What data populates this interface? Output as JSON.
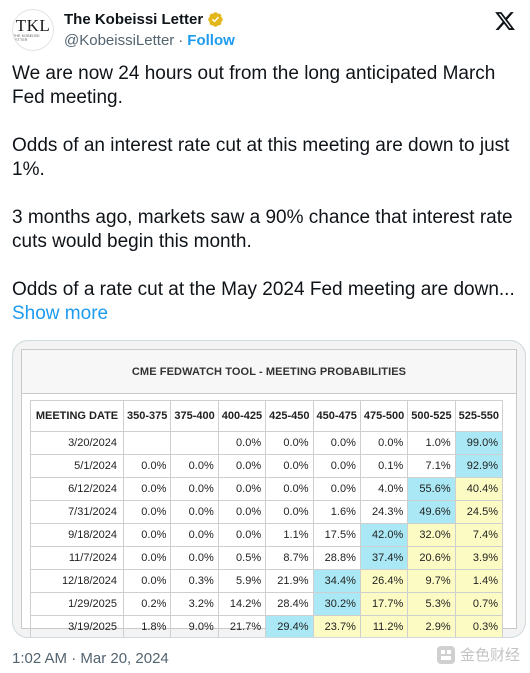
{
  "author": {
    "display_name": "The Kobeissi Letter",
    "handle": "@KobeissiLetter",
    "separator": "·",
    "follow_label": "Follow",
    "avatar_text": "TKL",
    "avatar_subtext": "THE KOBEISSI LETTER"
  },
  "tweet": {
    "paragraphs": [
      "We are now 24 hours out from the long anticipated March Fed meeting.",
      "Odds of an interest rate cut at this meeting are down to just 1%.",
      "3 months ago, markets saw a 90% chance that interest rate cuts would begin this month."
    ],
    "last_paragraph": "Odds of a rate cut at the May 2024 Fed meeting are down...",
    "show_more_label": "Show more",
    "timestamp": "1:02 AM · Mar 20, 2024"
  },
  "media": {
    "title": "CME FEDWATCH TOOL - MEETING PROBABILITIES",
    "columns": [
      "MEETING DATE",
      "350-375",
      "375-400",
      "400-425",
      "425-450",
      "450-475",
      "475-500",
      "500-525",
      "525-550"
    ],
    "rows": [
      {
        "date": "3/20/2024",
        "values": [
          "",
          "",
          "0.0%",
          "0.0%",
          "0.0%",
          "0.0%",
          "1.0%",
          "99.0%"
        ]
      },
      {
        "date": "5/1/2024",
        "values": [
          "0.0%",
          "0.0%",
          "0.0%",
          "0.0%",
          "0.0%",
          "0.1%",
          "7.1%",
          "92.9%"
        ]
      },
      {
        "date": "6/12/2024",
        "values": [
          "0.0%",
          "0.0%",
          "0.0%",
          "0.0%",
          "0.0%",
          "4.0%",
          "55.6%",
          "40.4%"
        ]
      },
      {
        "date": "7/31/2024",
        "values": [
          "0.0%",
          "0.0%",
          "0.0%",
          "0.0%",
          "1.6%",
          "24.3%",
          "49.6%",
          "24.5%"
        ]
      },
      {
        "date": "9/18/2024",
        "values": [
          "0.0%",
          "0.0%",
          "0.0%",
          "1.1%",
          "17.5%",
          "42.0%",
          "32.0%",
          "7.4%"
        ]
      },
      {
        "date": "11/7/2024",
        "values": [
          "0.0%",
          "0.0%",
          "0.5%",
          "8.7%",
          "28.8%",
          "37.4%",
          "20.6%",
          "3.9%"
        ]
      },
      {
        "date": "12/18/2024",
        "values": [
          "0.0%",
          "0.3%",
          "5.9%",
          "21.9%",
          "34.4%",
          "26.4%",
          "9.7%",
          "1.4%"
        ]
      },
      {
        "date": "1/29/2025",
        "values": [
          "0.2%",
          "3.2%",
          "14.2%",
          "28.4%",
          "30.2%",
          "17.7%",
          "5.3%",
          "0.7%"
        ]
      },
      {
        "date": "3/19/2025",
        "values": [
          "1.8%",
          "9.0%",
          "21.7%",
          "29.4%",
          "23.7%",
          "11.2%",
          "2.9%",
          "0.3%"
        ]
      }
    ],
    "highlights": [
      [
        null,
        null,
        null,
        null,
        null,
        null,
        null,
        "blue"
      ],
      [
        null,
        null,
        null,
        null,
        null,
        null,
        null,
        "blue"
      ],
      [
        null,
        null,
        null,
        null,
        null,
        null,
        "blue",
        "yellow"
      ],
      [
        null,
        null,
        null,
        null,
        null,
        null,
        "blue",
        "yellow"
      ],
      [
        null,
        null,
        null,
        null,
        null,
        "blue",
        "yellow",
        "yellow"
      ],
      [
        null,
        null,
        null,
        null,
        null,
        "blue",
        "yellow",
        "yellow"
      ],
      [
        null,
        null,
        null,
        null,
        "blue",
        "yellow",
        "yellow",
        "yellow"
      ],
      [
        null,
        null,
        null,
        null,
        "blue",
        "yellow",
        "yellow",
        "yellow"
      ],
      [
        null,
        null,
        null,
        "blue",
        "yellow",
        "yellow",
        "yellow",
        "yellow"
      ]
    ]
  },
  "watermark": {
    "text": "金色财经"
  },
  "colors": {
    "accent": "#1d9bf0",
    "highlight_blue": "#a9e8f4",
    "highlight_yellow": "#fcfbc4",
    "verified_gold": "#e2b719"
  },
  "icons": {
    "verified": "verified-badge-icon",
    "platform": "x-logo-icon",
    "watermark": "jinse-logo-icon"
  }
}
